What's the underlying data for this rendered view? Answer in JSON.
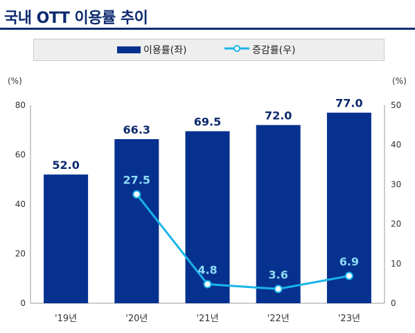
{
  "title": "국내 OTT 이용률 추이",
  "colors": {
    "bar": "#07318f",
    "line": "#1ab4e8",
    "title": "#0c2a6e",
    "bar_label": "#0c2a6e",
    "line_label": "#8ddcf6"
  },
  "chart_data": {
    "type": "bar",
    "categories": [
      "'19년",
      "'20년",
      "'21년",
      "'22년",
      "'23년"
    ],
    "series": [
      {
        "name": "이용률(좌)",
        "type": "bar",
        "axis": "left",
        "values": [
          52.0,
          66.3,
          69.5,
          72.0,
          77.0
        ]
      },
      {
        "name": "증감률(우)",
        "type": "line",
        "axis": "right",
        "values": [
          null,
          27.5,
          4.8,
          3.6,
          6.9
        ]
      }
    ],
    "y_left": {
      "unit": "(%)",
      "ylim": [
        0,
        80
      ],
      "ticks": [
        0,
        20,
        40,
        60,
        80
      ]
    },
    "y_right": {
      "unit": "(%)",
      "ylim": [
        0,
        50
      ],
      "ticks": [
        0,
        10,
        20,
        30,
        40,
        50
      ]
    },
    "bar_labels": [
      "52.0",
      "66.3",
      "69.5",
      "72.0",
      "77.0"
    ],
    "line_labels": [
      "",
      "27.5",
      "4.8",
      "3.6",
      "6.9"
    ],
    "legend": "top",
    "grid": false
  }
}
